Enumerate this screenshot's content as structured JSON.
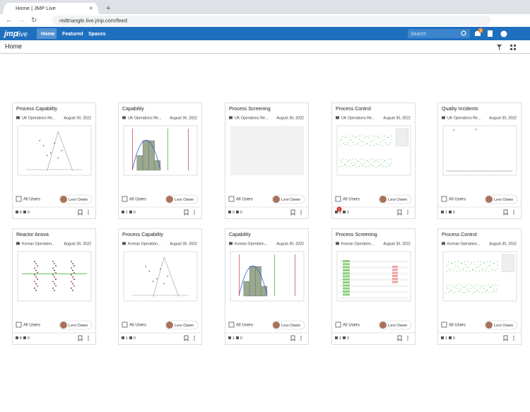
{
  "browser": {
    "tab_title": "Home | JMP Live",
    "url": "redtriangle.live.jmp.com/feed"
  },
  "nav": {
    "logo_main": "jmp",
    "logo_sub": "live",
    "items": [
      "Home",
      "Featured",
      "Spaces"
    ],
    "search_placeholder": "Search",
    "notification_count": "1"
  },
  "page": {
    "title": "Home"
  },
  "cards": [
    {
      "title": "Process Capability",
      "folder": "UK Operations Re...",
      "date": "August 30, 2022",
      "audience": "All Users",
      "author": "Levi Owen",
      "views": "8",
      "comments": "0"
    },
    {
      "title": "Capability",
      "folder": "UK Operations Re...",
      "date": "August 30, 2022",
      "audience": "All Users",
      "author": "Levi Owen",
      "views": "1",
      "comments": "0"
    },
    {
      "title": "Process Screening",
      "folder": "UK Operations Re...",
      "date": "August 30, 2022",
      "audience": "All Users",
      "author": "Levi Owen",
      "views": "0",
      "comments": "0"
    },
    {
      "title": "Process Control",
      "folder": "UK Operations Re...",
      "date": "August 30, 2022",
      "audience": "All Users",
      "author": "Levi Owen",
      "views": "3",
      "comments": "0",
      "badge": "1"
    },
    {
      "title": "Quality Incidents",
      "folder": "UK Operations Re...",
      "date": "August 30, 2022",
      "audience": "All Users",
      "author": "Levi Owen",
      "views": "1",
      "comments": "0"
    },
    {
      "title": "Reactor Anova",
      "folder": "Korean Operation...",
      "date": "August 30, 2022",
      "audience": "All Users",
      "author": "Levi Owen",
      "views": "8",
      "comments": "0"
    },
    {
      "title": "Process Capability",
      "folder": "Korean Operation...",
      "date": "August 30, 2022",
      "audience": "All Users",
      "author": "Levi Owen",
      "views": "1",
      "comments": "0"
    },
    {
      "title": "Capability",
      "folder": "Korean Operation...",
      "date": "August 30, 2022",
      "audience": "All Users",
      "author": "Levi Owen",
      "views": "1",
      "comments": "0"
    },
    {
      "title": "Process Screening",
      "folder": "Korean Operation...",
      "date": "August 30, 2022",
      "audience": "All Users",
      "author": "Levi Owen",
      "views": "3",
      "comments": "0"
    },
    {
      "title": "Process Control",
      "folder": "Korean Operation...",
      "date": "August 30, 2022",
      "audience": "All Users",
      "author": "Levi Owen",
      "views": "1",
      "comments": "0"
    }
  ]
}
